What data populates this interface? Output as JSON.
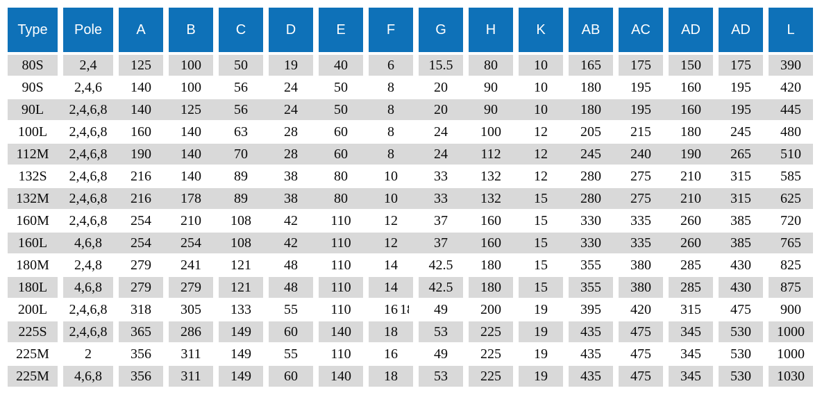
{
  "table": {
    "columns": [
      "Type",
      "Pole",
      "A",
      "B",
      "C",
      "D",
      "E",
      "F",
      "G",
      "H",
      "K",
      "AB",
      "AC",
      "AD",
      "AD",
      "L"
    ],
    "rows": [
      [
        "80S",
        "2,4",
        "125",
        "100",
        "50",
        "19",
        "40",
        "6",
        "15.5",
        "80",
        "10",
        "165",
        "175",
        "150",
        "175",
        "390"
      ],
      [
        "90S",
        "2,4,6",
        "140",
        "100",
        "56",
        "24",
        "50",
        "8",
        "20",
        "90",
        "10",
        "180",
        "195",
        "160",
        "195",
        "420"
      ],
      [
        "90L",
        "2,4,6,8",
        "140",
        "125",
        "56",
        "24",
        "50",
        "8",
        "20",
        "90",
        "10",
        "180",
        "195",
        "160",
        "195",
        "445"
      ],
      [
        "100L",
        "2,4,6,8",
        "160",
        "140",
        "63",
        "28",
        "60",
        "8",
        "24",
        "100",
        "12",
        "205",
        "215",
        "180",
        "245",
        "480"
      ],
      [
        "112M",
        "2,4,6,8",
        "190",
        "140",
        "70",
        "28",
        "60",
        "8",
        "24",
        "112",
        "12",
        "245",
        "240",
        "190",
        "265",
        "510"
      ],
      [
        "132S",
        "2,4,6,8",
        "216",
        "140",
        "89",
        "38",
        "80",
        "10",
        "33",
        "132",
        "12",
        "280",
        "275",
        "210",
        "315",
        "585"
      ],
      [
        "132M",
        "2,4,6,8",
        "216",
        "178",
        "89",
        "38",
        "80",
        "10",
        "33",
        "132",
        "15",
        "280",
        "275",
        "210",
        "315",
        "625"
      ],
      [
        "160M",
        "2,4,6,8",
        "254",
        "210",
        "108",
        "42",
        "110",
        "12",
        "37",
        "160",
        "15",
        "330",
        "335",
        "260",
        "385",
        "720"
      ],
      [
        "160L",
        "4,6,8",
        "254",
        "254",
        "108",
        "42",
        "110",
        "12",
        "37",
        "160",
        "15",
        "330",
        "335",
        "260",
        "385",
        "765"
      ],
      [
        "180M",
        "2,4,8",
        "279",
        "241",
        "121",
        "48",
        "110",
        "14",
        "42.5",
        "180",
        "15",
        "355",
        "380",
        "285",
        "430",
        "825"
      ],
      [
        "180L",
        "4,6,8",
        "279",
        "279",
        "121",
        "48",
        "110",
        "14",
        "42.5",
        "180",
        "15",
        "355",
        "380",
        "285",
        "430",
        "875"
      ],
      [
        "200L",
        "2,4,6,8",
        "318",
        "305",
        "133",
        "55",
        "110",
        "16",
        "49",
        "200",
        "19",
        "395",
        "420",
        "315",
        "475",
        "900"
      ],
      [
        "225S",
        "2,4,6,8",
        "365",
        "286",
        "149",
        "60",
        "140",
        "18",
        "53",
        "225",
        "19",
        "435",
        "475",
        "345",
        "530",
        "1000"
      ],
      [
        "225M",
        "2",
        "356",
        "311",
        "149",
        "55",
        "110",
        "16",
        "49",
        "225",
        "19",
        "435",
        "475",
        "345",
        "530",
        "1000"
      ],
      [
        "225M",
        "4,6,8",
        "356",
        "311",
        "149",
        "60",
        "140",
        "18",
        "53",
        "225",
        "19",
        "435",
        "475",
        "345",
        "530",
        "1030"
      ]
    ],
    "artifact": {
      "text": "18"
    }
  },
  "colors": {
    "header_bg": "#0e71b8",
    "header_fg": "#ffffff",
    "row_shade_bg": "#d9d9d9"
  }
}
